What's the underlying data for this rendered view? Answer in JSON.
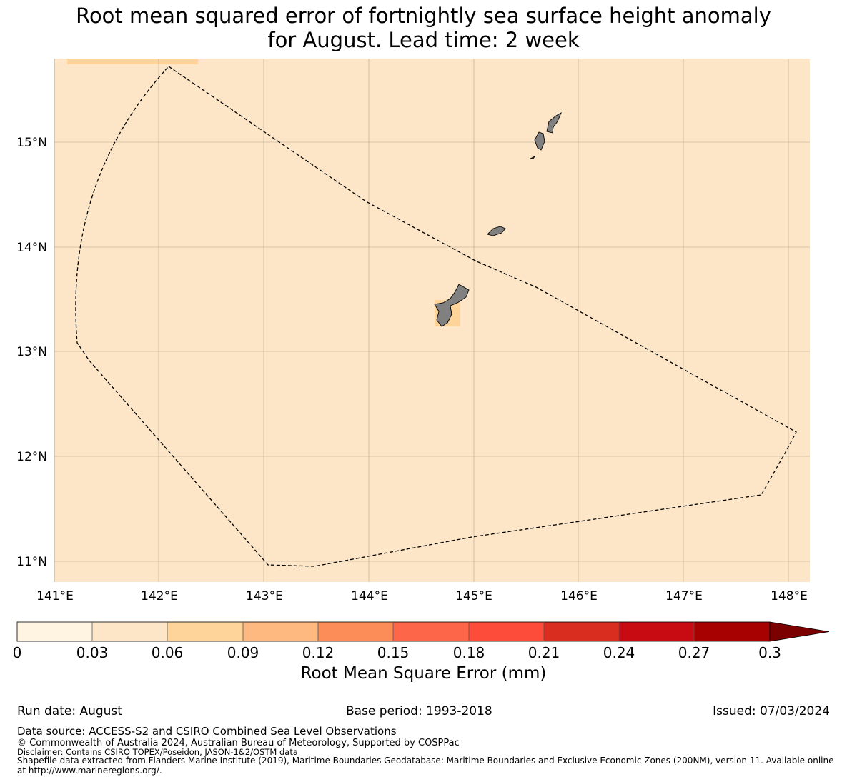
{
  "title": {
    "line1": "Root mean squared error of fortnightly sea surface height anomaly",
    "line2": "for August. Lead time: 2 week"
  },
  "map": {
    "background_color": "#fde6c7",
    "lat_labels": [
      "15°N",
      "14°N",
      "13°N",
      "12°N",
      "11°N"
    ],
    "lon_labels": [
      "141°E",
      "142°E",
      "143°E",
      "144°E",
      "145°E",
      "146°E",
      "147°E",
      "148°E"
    ],
    "land_color": "#808080",
    "eez_boundary": "dashed black line",
    "highlight_color": "#fed49a"
  },
  "colorbar": {
    "title": "Root Mean Square Error (mm)",
    "ticks": [
      "0",
      "0.03",
      "0.06",
      "0.09",
      "0.12",
      "0.15",
      "0.18",
      "0.21",
      "0.24",
      "0.27",
      "0.3"
    ],
    "colors": [
      "#fff4e1",
      "#fde6c7",
      "#fed49a",
      "#fdb97f",
      "#fc8d58",
      "#fe6649",
      "#fd4c3a",
      "#d92d20",
      "#c80b13",
      "#a70102"
    ],
    "extend_color": "#7b0000"
  },
  "footer": {
    "run_date": "Run date: August",
    "base_period": "Base period: 1993-2018",
    "issued": "Issued: 07/03/2024",
    "data_source": "Data source: ACCESS-S2 and CSIRO Combined Sea Level Observations",
    "copyright": "© Commonwealth of Australia 2024, Australian Bureau of Meteorology, Supported by COSPPac",
    "disclaimer": "Disclaimer: Contains CSIRO TOPEX/Poseidon, JASON-1&2/OSTM data",
    "shapefile": "Shapefile data extracted from Flanders Marine Institute (2019), Maritime Boundaries Geodatabase: Maritime Boundaries and Exclusive Economic Zones (200NM), version 11. Available online at http://www.marineregions.org/."
  }
}
